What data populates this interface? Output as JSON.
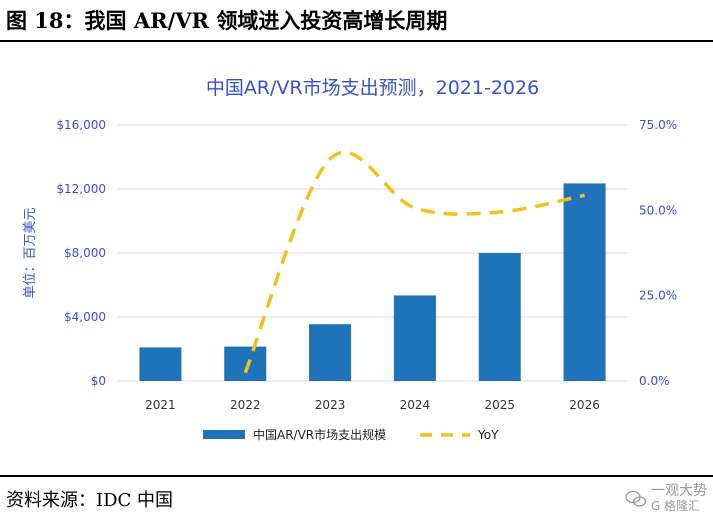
{
  "figure": {
    "title": "图 18：我国 AR/VR 领域进入投资高增长周期",
    "source": "资料来源：IDC 中国"
  },
  "watermark": {
    "line1": "一观大势",
    "line2": "G 格隆汇"
  },
  "colors": {
    "bar": "#1f74b9",
    "line": "#f2c21b",
    "title": "#3a4fd0",
    "axis_text": "#3a4fd0",
    "grid": "#d7d9ee",
    "category_text": "#333333"
  },
  "chart_data": {
    "type": "bar",
    "title": "中国AR/VR市场支出预测，2021-2026",
    "ylabel": "单位：百万美元",
    "xlabel": "",
    "categories": [
      "2021",
      "2022",
      "2023",
      "2024",
      "2025",
      "2026"
    ],
    "series": [
      {
        "name": "中国AR/VR市场支出规模",
        "type": "bar",
        "axis": "left",
        "values": [
          2100,
          2150,
          3550,
          5350,
          8000,
          12350
        ]
      },
      {
        "name": "YoY",
        "type": "line",
        "style": "dashed",
        "axis": "right",
        "values": [
          null,
          2.4,
          65.1,
          50.7,
          49.5,
          54.4
        ]
      }
    ],
    "ylim_left": [
      0,
      16000
    ],
    "ylim_right": [
      0,
      75
    ],
    "left_ticks": [
      "$0",
      "$4,000",
      "$8,000",
      "$12,000",
      "$16,000"
    ],
    "left_tick_values": [
      0,
      4000,
      8000,
      12000,
      16000
    ],
    "right_ticks": [
      "0.0%",
      "25.0%",
      "50.0%",
      "75.0%"
    ],
    "right_tick_values": [
      0,
      25,
      50,
      75
    ],
    "grid": true,
    "legend_position": "bottom"
  }
}
